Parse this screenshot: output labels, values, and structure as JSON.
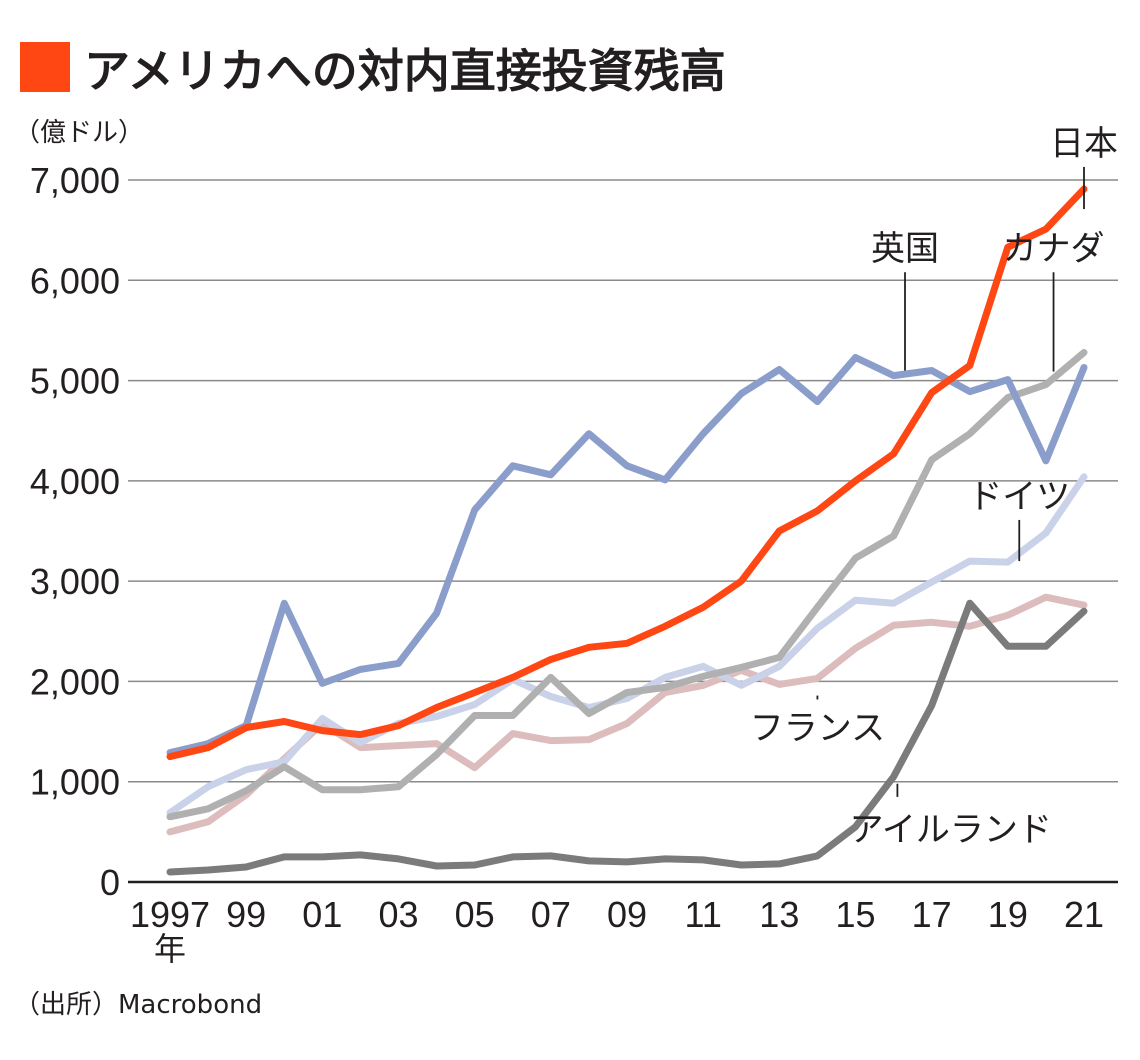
{
  "chart_data": {
    "type": "line",
    "title": "アメリカへの対内直接投資残高",
    "title_marker_color": "#ff4714",
    "unit_label": "（億ドル）",
    "source": "（出所）Macrobond",
    "ylim": [
      0,
      7000
    ],
    "y_ticks": [
      "0",
      "1,000",
      "2,000",
      "3,000",
      "4,000",
      "5,000",
      "6,000",
      "7,000"
    ],
    "y_tick_values": [
      0,
      1000,
      2000,
      3000,
      4000,
      5000,
      6000,
      7000
    ],
    "x": [
      1997,
      1998,
      1999,
      2000,
      2001,
      2002,
      2003,
      2004,
      2005,
      2006,
      2007,
      2008,
      2009,
      2010,
      2011,
      2012,
      2013,
      2014,
      2015,
      2016,
      2017,
      2018,
      2019,
      2020,
      2021
    ],
    "x_tick_labels": [
      "1997",
      "99",
      "01",
      "03",
      "05",
      "07",
      "09",
      "11",
      "13",
      "15",
      "17",
      "19",
      "21"
    ],
    "x_tick_years": [
      1997,
      1999,
      2001,
      2003,
      2005,
      2007,
      2009,
      2011,
      2013,
      2015,
      2017,
      2019,
      2021
    ],
    "x_year_suffix": "年",
    "series": [
      {
        "name": "フランス",
        "color": "#dcbcbc",
        "values": [
          500,
          600,
          870,
          1230,
          1580,
          1340,
          1360,
          1380,
          1140,
          1480,
          1410,
          1420,
          1580,
          1890,
          1960,
          2110,
          1970,
          2030,
          2330,
          2560,
          2590,
          2550,
          2660,
          2840,
          2760
        ],
        "callout": {
          "year": 2014,
          "value": 1820,
          "label_x": 2014,
          "label_y": 1420
        }
      },
      {
        "name": "ドイツ",
        "color": "#c9d2e9",
        "values": [
          690,
          950,
          1120,
          1200,
          1630,
          1390,
          1580,
          1650,
          1770,
          2020,
          1850,
          1740,
          1830,
          2040,
          2150,
          1960,
          2150,
          2530,
          2810,
          2780,
          2990,
          3200,
          3190,
          3480,
          4040
        ],
        "callout": {
          "year": 2019.3,
          "value": 3200,
          "label_x": 2019.3,
          "label_y": 3730
        }
      },
      {
        "name": "カナダ",
        "color": "#b0b0b0",
        "values": [
          650,
          730,
          910,
          1150,
          920,
          920,
          950,
          1270,
          1660,
          1660,
          2040,
          1680,
          1890,
          1940,
          2050,
          2140,
          2240,
          2740,
          3230,
          3450,
          4210,
          4470,
          4830,
          4960,
          5280
        ],
        "callout": {
          "year": 2020.2,
          "value": 5090,
          "label_x": 2020.2,
          "label_y": 6200
        }
      },
      {
        "name": "英国",
        "color": "#8b9dca",
        "values": [
          1290,
          1380,
          1560,
          2780,
          1980,
          2120,
          2180,
          2680,
          3710,
          4150,
          4060,
          4470,
          4150,
          4010,
          4470,
          4870,
          5110,
          4790,
          5230,
          5050,
          5100,
          4890,
          5010,
          4200,
          5130
        ],
        "callout": {
          "year": 2016.3,
          "value": 5100,
          "label_x": 2016.3,
          "label_y": 6200
        }
      },
      {
        "name": "アイルランド",
        "color": "#7b7b7b",
        "values": [
          100,
          120,
          150,
          250,
          250,
          270,
          230,
          160,
          170,
          250,
          260,
          210,
          200,
          230,
          220,
          170,
          180,
          260,
          550,
          1050,
          1760,
          2780,
          2350,
          2350,
          2700
        ],
        "callout": {
          "year": 2016.1,
          "value": 980,
          "label_x": 2017.5,
          "label_y": 410
        }
      },
      {
        "name": "日本",
        "color": "#ff4714",
        "values": [
          1250,
          1340,
          1540,
          1600,
          1510,
          1470,
          1560,
          1740,
          1890,
          2040,
          2220,
          2340,
          2380,
          2550,
          2740,
          3000,
          3500,
          3700,
          4000,
          4270,
          4880,
          5150,
          6330,
          6510,
          6910
        ],
        "callout": {
          "year": 2021,
          "value": 6710,
          "label_x": 2021,
          "label_y": 7250
        }
      }
    ]
  }
}
